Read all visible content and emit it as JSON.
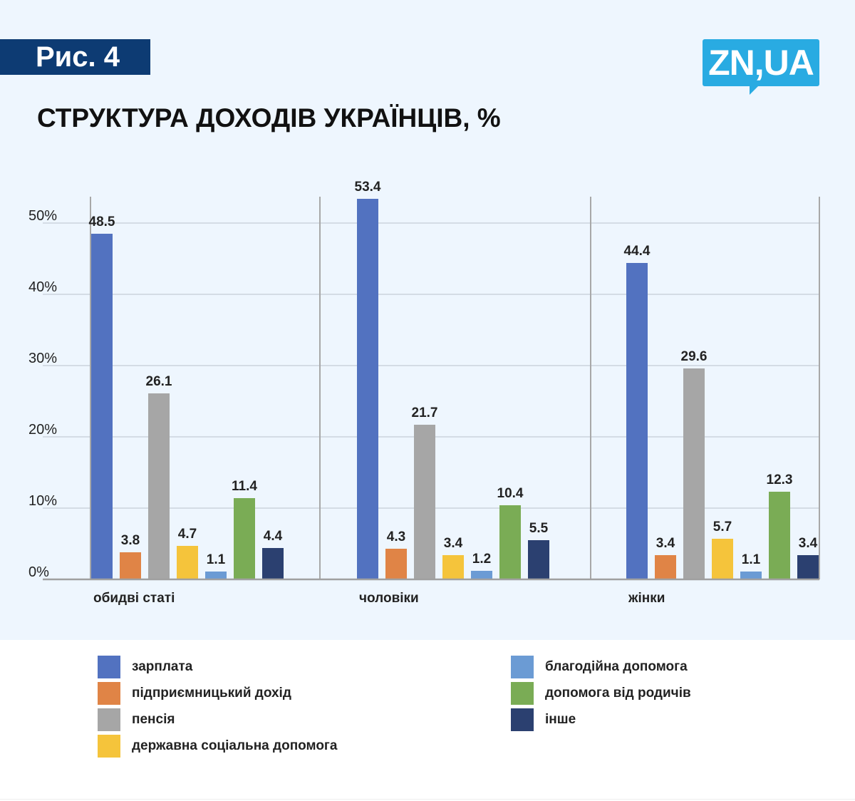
{
  "header": {
    "figure_label": "Рис. 4",
    "logo_text": "ZN,UA",
    "title": "СТРУКТУРА ДОХОДІВ УКРАЇНЦІВ, %"
  },
  "colors": {
    "panel_bg": "#eef6fe",
    "badge_bg": "#0d3b73",
    "logo_bg": "#29abe2"
  },
  "chart_data": {
    "type": "bar",
    "title": "СТРУКТУРА ДОХОДІВ УКРАЇНЦІВ, %",
    "categories": [
      "обидві статі",
      "чоловіки",
      "жінки"
    ],
    "ylim": [
      0,
      54
    ],
    "yticks": [
      0,
      10,
      20,
      30,
      40,
      50
    ],
    "ytick_labels": [
      "0%",
      "10%",
      "20%",
      "30%",
      "40%",
      "50%"
    ],
    "grid": true,
    "legend_position": "bottom",
    "series": [
      {
        "name": "зарплата",
        "color": "#5272c0",
        "values": [
          48.5,
          53.4,
          44.4
        ]
      },
      {
        "name": "підприємницький дохід",
        "color": "#e08446",
        "values": [
          3.8,
          4.3,
          3.4
        ]
      },
      {
        "name": "пенсія",
        "color": "#a6a6a6",
        "values": [
          26.1,
          21.7,
          29.6
        ]
      },
      {
        "name": "державна соціальна допомога",
        "color": "#f5c43b",
        "values": [
          4.7,
          3.4,
          5.7
        ]
      },
      {
        "name": "благодійна допомога",
        "color": "#6b9bd4",
        "values": [
          1.1,
          1.2,
          1.1
        ]
      },
      {
        "name": "допомога від родичів",
        "color": "#7aac55",
        "values": [
          11.4,
          10.4,
          12.3
        ]
      },
      {
        "name": "інше",
        "color": "#2b4070",
        "values": [
          4.4,
          5.5,
          3.4
        ]
      }
    ]
  }
}
